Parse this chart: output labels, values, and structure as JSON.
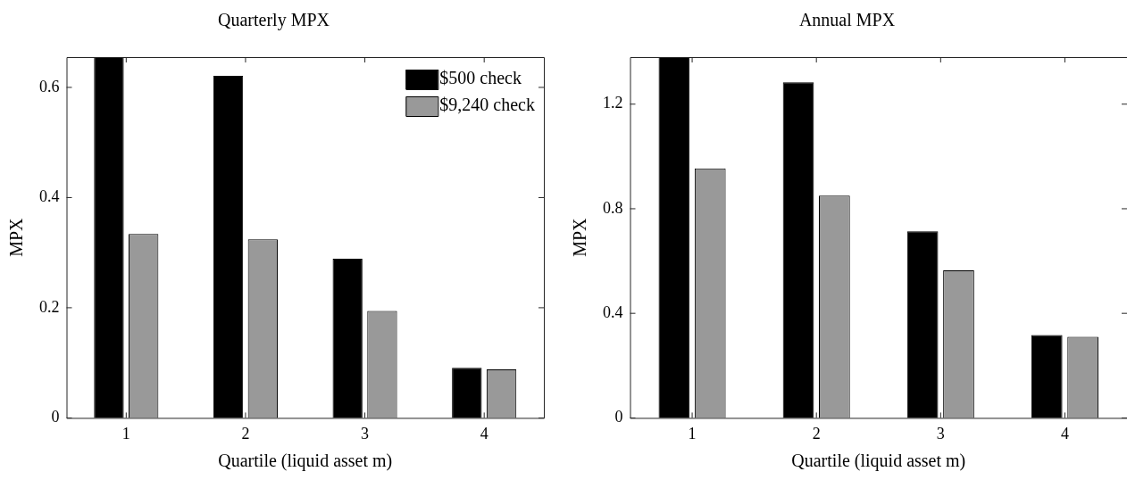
{
  "chart_data": [
    {
      "type": "bar",
      "title": "Quarterly MPX",
      "xlabel": "Quartile (liquid asset m)",
      "ylabel": "MPX",
      "categories": [
        "1",
        "2",
        "3",
        "4"
      ],
      "series": [
        {
          "name": "$500 check",
          "color": "#000000",
          "values": [
            0.655,
            0.621,
            0.289,
            0.091
          ]
        },
        {
          "name": "$9,240 check",
          "color": "#999999",
          "values": [
            0.334,
            0.324,
            0.194,
            0.088
          ]
        }
      ],
      "ylim": [
        0,
        0.655
      ],
      "yticks": [
        0,
        0.2,
        0.4,
        0.6
      ],
      "grid": false,
      "legend": "top right"
    },
    {
      "type": "bar",
      "title": "Annual MPX",
      "xlabel": "Quartile (liquid asset m)",
      "ylabel": "MPX",
      "categories": [
        "1",
        "2",
        "3",
        "4"
      ],
      "series": [
        {
          "color": "#000000",
          "values": [
            1.38,
            1.284,
            0.714,
            0.317
          ]
        },
        {
          "color": "#999999",
          "values": [
            0.954,
            0.85,
            0.564,
            0.31
          ]
        }
      ],
      "ylim": [
        0,
        1.38
      ],
      "yticks": [
        0,
        0.4,
        0.8,
        1.2
      ],
      "grid": false,
      "legend": false
    }
  ]
}
